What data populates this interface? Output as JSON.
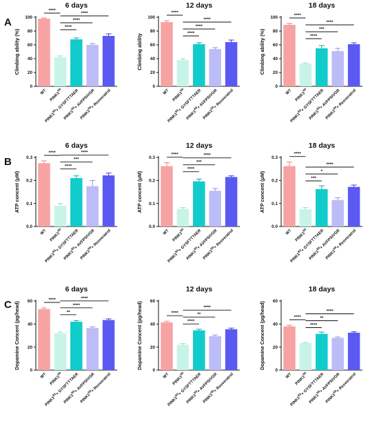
{
  "panels": [
    {
      "letter": "A"
    },
    {
      "letter": "B"
    },
    {
      "letter": "C"
    }
  ],
  "category_labels": [
    {
      "base": "WT",
      "sup": "",
      "suffix": ""
    },
    {
      "base": "PINK1",
      "sup": "B9",
      "suffix": ""
    },
    {
      "base": "PINK1",
      "sup": "B9",
      "suffix": "+ GYSFTTTAER"
    },
    {
      "base": "PINK1",
      "sup": "B9",
      "suffix": "+ AVFPSIVGR"
    },
    {
      "base": "PINK1",
      "sup": "B9",
      "suffix": "+ Resveratrol"
    }
  ],
  "bar_colors": [
    "#f8a3a3",
    "#c8f4e8",
    "#11cccb",
    "#bcbcf7",
    "#5a5af2"
  ],
  "error_colors": [
    "#f07f7f",
    "#86e3c8",
    "#0aa6a6",
    "#8f8fe6",
    "#3838d8"
  ],
  "chart_data": [
    {
      "type": "bar",
      "panel": "A",
      "title": "6 days",
      "ylabel": "Climbing ability (%)",
      "ylim": [
        0,
        100
      ],
      "yticks": [
        0,
        20,
        40,
        60,
        80,
        100
      ],
      "values": [
        98,
        42,
        68,
        60,
        73
      ],
      "errors": [
        1,
        2,
        2,
        2,
        3
      ],
      "significance": [
        {
          "from": 0,
          "to": 1,
          "label": "****"
        },
        {
          "from": 1,
          "to": 2,
          "label": "****"
        },
        {
          "from": 1,
          "to": 3,
          "label": "****"
        },
        {
          "from": 1,
          "to": 4,
          "label": "****"
        }
      ]
    },
    {
      "type": "bar",
      "panel": "A",
      "title": "12 days",
      "ylabel": "Climbing ability",
      "ylim": [
        0,
        100
      ],
      "yticks": [
        0,
        20,
        40,
        60,
        80,
        100
      ],
      "values": [
        93,
        38,
        61,
        54,
        64
      ],
      "errors": [
        2,
        2,
        2,
        2,
        3
      ],
      "significance": [
        {
          "from": 0,
          "to": 1,
          "label": "****"
        },
        {
          "from": 1,
          "to": 2,
          "label": "****"
        },
        {
          "from": 1,
          "to": 3,
          "label": "****"
        },
        {
          "from": 1,
          "to": 4,
          "label": "****"
        }
      ]
    },
    {
      "type": "bar",
      "panel": "A",
      "title": "18 days",
      "ylabel": "Climbing ability (%)",
      "ylim": [
        0,
        100
      ],
      "yticks": [
        0,
        20,
        40,
        60,
        80,
        100
      ],
      "values": [
        89,
        33,
        55,
        51,
        61
      ],
      "errors": [
        2,
        1,
        4,
        4,
        2
      ],
      "significance": [
        {
          "from": 0,
          "to": 1,
          "label": "****"
        },
        {
          "from": 1,
          "to": 2,
          "label": "****"
        },
        {
          "from": 1,
          "to": 3,
          "label": "***"
        },
        {
          "from": 1,
          "to": 4,
          "label": "****"
        }
      ]
    },
    {
      "type": "bar",
      "panel": "B",
      "title": "6 days",
      "ylabel": "ATP concent (μM)",
      "ylim": [
        0,
        0.3
      ],
      "yticks": [
        0.0,
        0.1,
        0.2,
        0.3
      ],
      "values": [
        0.275,
        0.09,
        0.21,
        0.175,
        0.222
      ],
      "errors": [
        0.01,
        0.01,
        0.01,
        0.025,
        0.01
      ],
      "significance": [
        {
          "from": 0,
          "to": 1,
          "label": "****"
        },
        {
          "from": 1,
          "to": 2,
          "label": "****"
        },
        {
          "from": 1,
          "to": 3,
          "label": "***"
        },
        {
          "from": 1,
          "to": 4,
          "label": "****"
        }
      ]
    },
    {
      "type": "bar",
      "panel": "B",
      "title": "12 days",
      "ylabel": "ATP concent (μM)",
      "ylim": [
        0,
        0.3
      ],
      "yticks": [
        0.0,
        0.1,
        0.2,
        0.3
      ],
      "values": [
        0.262,
        0.076,
        0.196,
        0.155,
        0.215
      ],
      "errors": [
        0.015,
        0.006,
        0.01,
        0.01,
        0.005
      ],
      "significance": [
        {
          "from": 0,
          "to": 1,
          "label": "****"
        },
        {
          "from": 1,
          "to": 2,
          "label": "****"
        },
        {
          "from": 1,
          "to": 3,
          "label": "***"
        },
        {
          "from": 1,
          "to": 4,
          "label": "****"
        }
      ]
    },
    {
      "type": "bar",
      "panel": "B",
      "title": "18 days",
      "ylabel": "ATP concent (μM)",
      "ylim": [
        0,
        0.3
      ],
      "yticks": [
        0.0,
        0.1,
        0.2,
        0.3
      ],
      "values": [
        0.262,
        0.075,
        0.162,
        0.115,
        0.172
      ],
      "errors": [
        0.018,
        0.007,
        0.015,
        0.01,
        0.008
      ],
      "significance": [
        {
          "from": 0,
          "to": 1,
          "label": "****"
        },
        {
          "from": 1,
          "to": 2,
          "label": "***"
        },
        {
          "from": 1,
          "to": 3,
          "label": "*"
        },
        {
          "from": 1,
          "to": 4,
          "label": "****"
        }
      ]
    },
    {
      "type": "bar",
      "panel": "C",
      "title": "6 days",
      "ylabel": "Dopamine Concent (pg/head)",
      "ylim": [
        0,
        60
      ],
      "yticks": [
        0,
        20,
        40,
        60
      ],
      "values": [
        53,
        32,
        42,
        36.5,
        43.5
      ],
      "errors": [
        1,
        1,
        1,
        1,
        1
      ],
      "significance": [
        {
          "from": 0,
          "to": 1,
          "label": "****"
        },
        {
          "from": 1,
          "to": 2,
          "label": "**"
        },
        {
          "from": 1,
          "to": 3,
          "label": "****"
        },
        {
          "from": 1,
          "to": 4,
          "label": "****"
        }
      ]
    },
    {
      "type": "bar",
      "panel": "C",
      "title": "12 days",
      "ylabel": "Dopamine Concent (pg/head)",
      "ylim": [
        0,
        60
      ],
      "yticks": [
        0,
        20,
        40,
        60
      ],
      "values": [
        41.5,
        22,
        34.5,
        29.5,
        35.5
      ],
      "errors": [
        1,
        1,
        1,
        1,
        1
      ],
      "significance": [
        {
          "from": 0,
          "to": 1,
          "label": "****"
        },
        {
          "from": 1,
          "to": 2,
          "label": "****"
        },
        {
          "from": 1,
          "to": 3,
          "label": "**"
        },
        {
          "from": 1,
          "to": 4,
          "label": "****"
        }
      ]
    },
    {
      "type": "bar",
      "panel": "C",
      "title": "18 days",
      "ylabel": "Dopamine Concent (pg/head)",
      "ylim": [
        0,
        60
      ],
      "yticks": [
        0,
        20,
        40,
        60
      ],
      "values": [
        38,
        23.5,
        31.5,
        28,
        32.5
      ],
      "errors": [
        1,
        0.5,
        1.5,
        0.8,
        0.8
      ],
      "significance": [
        {
          "from": 0,
          "to": 1,
          "label": "****"
        },
        {
          "from": 1,
          "to": 2,
          "label": "****"
        },
        {
          "from": 1,
          "to": 3,
          "label": "**"
        },
        {
          "from": 1,
          "to": 4,
          "label": "****"
        }
      ]
    }
  ]
}
